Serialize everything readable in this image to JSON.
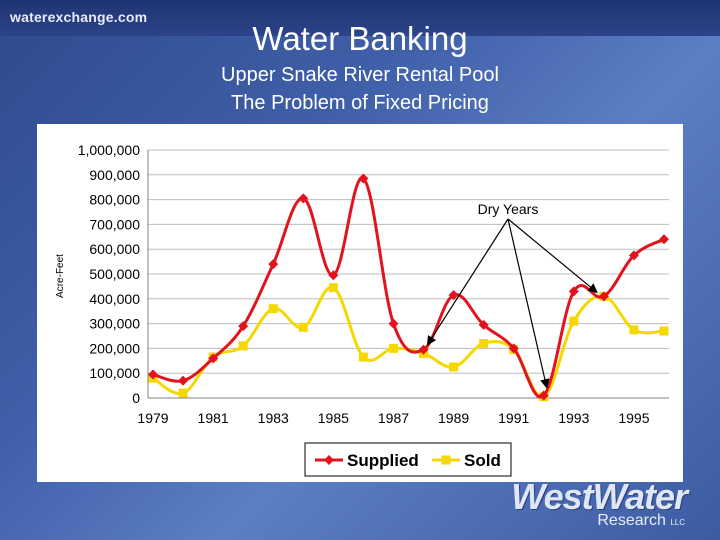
{
  "header": {
    "site": "waterexchange.com",
    "title": "Water Banking",
    "subtitle_line1": "Upper Snake River Rental Pool",
    "subtitle_line2": "The Problem of Fixed Pricing"
  },
  "brand": {
    "name": "WestWater",
    "sub": "Research",
    "suffix": "LLC"
  },
  "colors": {
    "supplied": "#e2131e",
    "sold": "#f5d800",
    "background": "#3f5fa8"
  },
  "chart_data": {
    "type": "line",
    "title": "",
    "xlabel": "",
    "ylabel": "Acre-Feet",
    "x": [
      1979,
      1980,
      1981,
      1982,
      1983,
      1984,
      1985,
      1986,
      1987,
      1988,
      1989,
      1990,
      1991,
      1992,
      1993,
      1994,
      1995,
      1996
    ],
    "x_tick_labels": [
      "1979",
      "1981",
      "1983",
      "1985",
      "1987",
      "1989",
      "1991",
      "1993",
      "1995"
    ],
    "ylim": [
      0,
      1000000
    ],
    "y_tick_labels": [
      "0",
      "100,000",
      "200,000",
      "300,000",
      "400,000",
      "500,000",
      "600,000",
      "700,000",
      "800,000",
      "900,000",
      "1,000,000"
    ],
    "grid": true,
    "legend": "bottom-center",
    "series": [
      {
        "name": "Supplied",
        "color": "#e2131e",
        "marker": "diamond",
        "values": [
          95000,
          70000,
          160000,
          290000,
          540000,
          805000,
          495000,
          885000,
          300000,
          195000,
          415000,
          295000,
          200000,
          10000,
          430000,
          410000,
          575000,
          640000
        ]
      },
      {
        "name": "Sold",
        "color": "#f5d800",
        "marker": "square",
        "values": [
          80000,
          20000,
          165000,
          210000,
          360000,
          285000,
          445000,
          165000,
          200000,
          180000,
          125000,
          220000,
          195000,
          5000,
          310000,
          410000,
          275000,
          270000
        ]
      }
    ],
    "annotation": {
      "text": "Dry Years",
      "targets": [
        1988,
        1992,
        1994
      ]
    }
  }
}
